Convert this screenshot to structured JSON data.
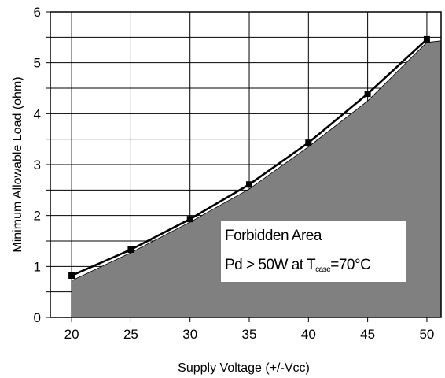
{
  "chart_data": {
    "type": "line",
    "xlabel": "Supply Voltage (+/-Vcc)",
    "ylabel": "Minimum Allowable Load (ohm)",
    "xlim": [
      18.2,
      51.2
    ],
    "ylim": [
      0,
      6
    ],
    "x_ticks": [
      "20",
      "25",
      "30",
      "35",
      "40",
      "45",
      "50"
    ],
    "y_ticks": [
      "0",
      "1",
      "2",
      "3",
      "4",
      "5",
      "6"
    ],
    "grid": true,
    "series": [
      {
        "x": [
          20,
          25,
          30,
          35,
          40,
          45,
          50
        ],
        "values": [
          0.82,
          1.33,
          1.93,
          2.61,
          3.43,
          4.39,
          5.46
        ],
        "marker": "square",
        "color": "#000000"
      }
    ],
    "shaded_region": {
      "x": [
        20,
        25,
        30,
        35,
        40,
        45,
        50,
        51.2
      ],
      "values": [
        0.72,
        1.27,
        1.87,
        2.52,
        3.35,
        4.25,
        5.4,
        5.43
      ],
      "color": "#808080"
    },
    "annotation": {
      "line1": "Forbidden Area",
      "line2_pre": "Pd > 50W at T",
      "line2_sub": "case",
      "line2_post": "=70°C"
    }
  }
}
